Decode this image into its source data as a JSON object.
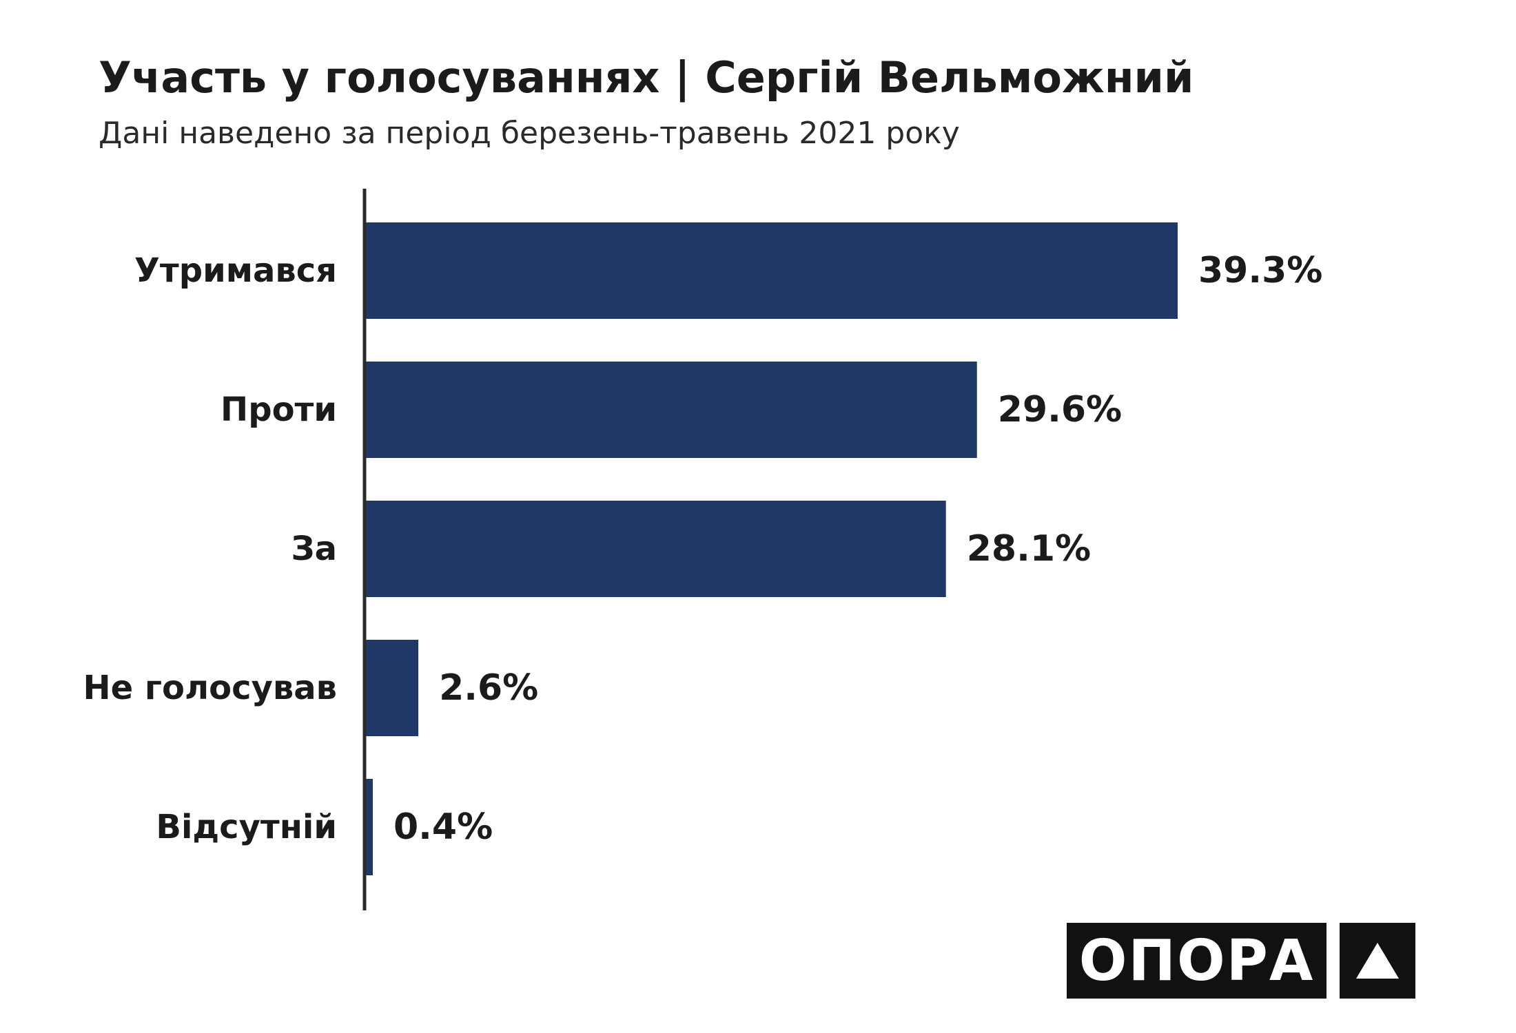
{
  "title": "Участь у голосуваннях | Сергій Вельможний",
  "subtitle": "Дані наведено за період березень-травень 2021 року",
  "brand": {
    "name": "ОПОРА",
    "mark_icon": "triangle-up-icon"
  },
  "colors": {
    "bar": "#1f3866",
    "axis": "#2b2b2b",
    "label": "#1b1b1b",
    "logo_bg": "#111111",
    "logo_fg": "#ffffff"
  },
  "chart_data": {
    "type": "bar",
    "orientation": "horizontal",
    "categories": [
      "Утримався",
      "Проти",
      "За",
      "Не голосував",
      "Відсутній"
    ],
    "values": [
      39.3,
      29.6,
      28.1,
      2.6,
      0.4
    ],
    "value_labels": [
      "39.3%",
      "29.6%",
      "28.1%",
      "2.6%",
      "0.4%"
    ],
    "unit": "%",
    "xlim": [
      0,
      39.3
    ],
    "grid": false,
    "title": "Участь у голосуваннях | Сергій Вельможний",
    "subtitle": "Дані наведено за період березень-травень 2021 року"
  }
}
